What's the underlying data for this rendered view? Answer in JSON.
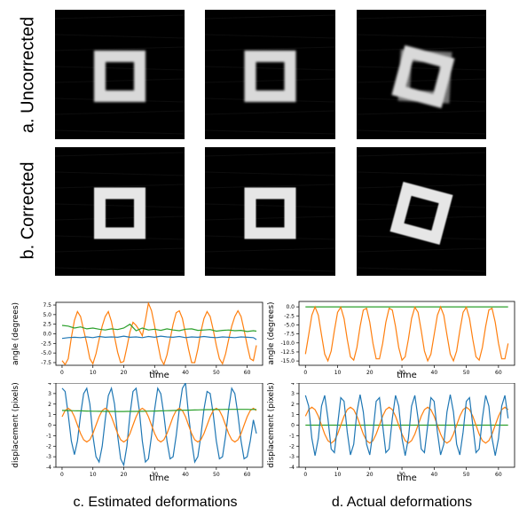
{
  "rows": [
    {
      "label": "a. Uncorrected",
      "rotations": [
        0,
        0,
        15
      ]
    },
    {
      "label": "b. Corrected",
      "rotations": [
        0,
        0,
        15
      ]
    }
  ],
  "captions": {
    "estimated": "c. Estimated deformations",
    "actual": "d. Actual deformations"
  },
  "colors": {
    "blue": "#1f77b4",
    "orange": "#ff7f0e",
    "green": "#2ca02c"
  },
  "chart_data": [
    {
      "id": "est_angle",
      "type": "line",
      "xlabel": "time",
      "ylabel": "angle (degrees)",
      "xlim": [
        -2,
        65
      ],
      "ylim": [
        -8.2,
        8.2
      ],
      "xticks": [
        0,
        10,
        20,
        30,
        40,
        50,
        60
      ],
      "yticks": [
        -7.5,
        -5.0,
        -2.5,
        0.0,
        2.5,
        5.0,
        7.5
      ],
      "ytick_labels": [
        "-7.5",
        "-5.0",
        "-2.5",
        "0.0",
        "2.5",
        "5.0",
        "7.5"
      ],
      "series": [
        {
          "color": "orange",
          "x": [
            0,
            1,
            2,
            3,
            4,
            5,
            6,
            7,
            8,
            9,
            10,
            11,
            12,
            13,
            14,
            15,
            16,
            17,
            18,
            19,
            20,
            21,
            22,
            23,
            24,
            25,
            26,
            27,
            28,
            29,
            30,
            31,
            32,
            33,
            34,
            35,
            36,
            37,
            38,
            39,
            40,
            41,
            42,
            43,
            44,
            45,
            46,
            47,
            48,
            49,
            50,
            51,
            52,
            53,
            54,
            55,
            56,
            57,
            58,
            59,
            60,
            61,
            62,
            63
          ],
          "y": [
            -7,
            -8,
            -6.5,
            -1,
            3.5,
            5.8,
            4.5,
            1,
            -2.5,
            -6.5,
            -7.8,
            -5.2,
            -1.5,
            2,
            4.5,
            5.8,
            3.2,
            -0.8,
            -4.8,
            -7.5,
            -7.2,
            -3.5,
            0.5,
            3,
            2.2,
            1,
            -0.5,
            3.5,
            8,
            6,
            2,
            -2.5,
            -6.5,
            -8,
            -5.5,
            -1.5,
            2.5,
            5.5,
            6,
            4,
            0,
            -4,
            -7.5,
            -7.5,
            -4,
            0.5,
            4,
            5.8,
            4.5,
            1,
            -3,
            -6.5,
            -7.8,
            -5.2,
            -1.5,
            2,
            4.5,
            6,
            4.5,
            1,
            -3,
            -6.5,
            -7,
            -3
          ]
        },
        {
          "color": "green",
          "x": [
            0,
            2,
            4,
            6,
            8,
            10,
            12,
            14,
            16,
            18,
            20,
            22,
            24,
            26,
            28,
            30,
            32,
            34,
            36,
            38,
            40,
            42,
            44,
            46,
            48,
            50,
            52,
            54,
            56,
            58,
            60,
            62,
            63
          ],
          "y": [
            2.2,
            2,
            1.5,
            1.8,
            1.3,
            1.5,
            1.2,
            1,
            1.3,
            1.1,
            1.5,
            2.5,
            0.8,
            1.5,
            1,
            1.2,
            0.9,
            1.3,
            1,
            0.8,
            1.2,
            1.3,
            0.9,
            1,
            1.1,
            0.7,
            0.9,
            1,
            0.8,
            0.9,
            0.6,
            0.8,
            0.7
          ]
        },
        {
          "color": "blue",
          "x": [
            0,
            2,
            4,
            6,
            8,
            10,
            12,
            14,
            16,
            18,
            20,
            22,
            24,
            26,
            28,
            30,
            32,
            34,
            36,
            38,
            40,
            42,
            44,
            46,
            48,
            50,
            52,
            54,
            56,
            58,
            60,
            62,
            63
          ],
          "y": [
            -1.2,
            -1,
            -0.9,
            -1,
            -0.8,
            -1,
            -0.7,
            -0.9,
            -0.8,
            -0.9,
            -0.6,
            -0.9,
            -0.8,
            -1,
            -0.7,
            -0.9,
            -0.6,
            -0.8,
            -0.9,
            -0.7,
            -1,
            -0.8,
            -0.9,
            -0.7,
            -0.9,
            -1,
            -0.8,
            -0.9,
            -1,
            -0.8,
            -0.9,
            -1,
            -1.5
          ]
        }
      ]
    },
    {
      "id": "act_angle",
      "type": "line",
      "xlabel": "time",
      "ylabel": "angle (degrees)",
      "xlim": [
        -2,
        65
      ],
      "ylim": [
        -16.2,
        1.5
      ],
      "xticks": [
        0,
        10,
        20,
        30,
        40,
        50,
        60
      ],
      "yticks": [
        0,
        -2.5,
        -5,
        -7.5,
        -10,
        -12.5,
        -15
      ],
      "ytick_labels": [
        "0.0",
        "-2.5",
        "-5.0",
        "-7.5",
        "-10.0",
        "-12.5",
        "-15.0"
      ],
      "series": [
        {
          "color": "green",
          "x": [
            0,
            63
          ],
          "y": [
            0,
            0
          ]
        },
        {
          "color": "orange",
          "fn": "angle_actual"
        }
      ]
    },
    {
      "id": "est_disp",
      "type": "line",
      "xlabel": "time",
      "ylabel": "displacement (pixels)",
      "xlim": [
        -2,
        65
      ],
      "ylim": [
        -4,
        4
      ],
      "xticks": [
        0,
        10,
        20,
        30,
        40,
        50,
        60
      ],
      "yticks": [
        -4,
        -3,
        -2,
        -1,
        0,
        1,
        2,
        3,
        4
      ],
      "ytick_labels": [
        "-4",
        "-3",
        "-2",
        "-1",
        "0",
        "1",
        "2",
        "3",
        "4"
      ],
      "series": [
        {
          "color": "blue",
          "x": [
            0,
            1,
            2,
            3,
            4,
            5,
            6,
            7,
            8,
            9,
            10,
            11,
            12,
            13,
            14,
            15,
            16,
            17,
            18,
            19,
            20,
            21,
            22,
            23,
            24,
            25,
            26,
            27,
            28,
            29,
            30,
            31,
            32,
            33,
            34,
            35,
            36,
            37,
            38,
            39,
            40,
            41,
            42,
            43,
            44,
            45,
            46,
            47,
            48,
            49,
            50,
            51,
            52,
            53,
            54,
            55,
            56,
            57,
            58,
            59,
            60,
            61,
            62,
            63
          ],
          "y": [
            3.5,
            3.2,
            1,
            -1.5,
            -2.8,
            -1.5,
            1,
            3,
            3.5,
            2,
            -1,
            -3,
            -3.5,
            -2,
            0.5,
            2.8,
            3.5,
            2,
            -1,
            -3.2,
            -3.8,
            -2,
            1,
            3.2,
            3.5,
            1.5,
            -1.5,
            -3.5,
            -3.2,
            -1,
            1.5,
            3.5,
            3,
            1,
            -1.5,
            -3.2,
            -3,
            -1,
            1.5,
            3.5,
            4,
            1,
            -1.5,
            -3.5,
            -3,
            -1,
            1.5,
            3.2,
            3,
            1,
            -1.5,
            -3.2,
            -3,
            -1,
            1.5,
            3.5,
            3,
            1,
            -1.5,
            -3.2,
            -3,
            -1.5,
            0.5,
            -0.8
          ]
        },
        {
          "color": "orange",
          "fn": "disp_est_orange"
        },
        {
          "color": "green",
          "fn": "disp_est_green"
        }
      ]
    },
    {
      "id": "act_disp",
      "type": "line",
      "xlabel": "time",
      "ylabel": "displacement (pixels)",
      "xlim": [
        -2,
        65
      ],
      "ylim": [
        -4,
        4
      ],
      "xticks": [
        0,
        10,
        20,
        30,
        40,
        50,
        60
      ],
      "yticks": [
        -4,
        -3,
        -2,
        -1,
        0,
        1,
        2,
        3,
        4
      ],
      "ytick_labels": [
        "-4",
        "-3",
        "-2",
        "-1",
        "0",
        "1",
        "2",
        "3",
        "4"
      ],
      "series": [
        {
          "color": "green",
          "x": [
            0,
            63
          ],
          "y": [
            0,
            0
          ]
        },
        {
          "color": "orange",
          "fn": "disp_act_orange"
        },
        {
          "color": "blue",
          "fn": "disp_act_blue"
        }
      ]
    }
  ]
}
